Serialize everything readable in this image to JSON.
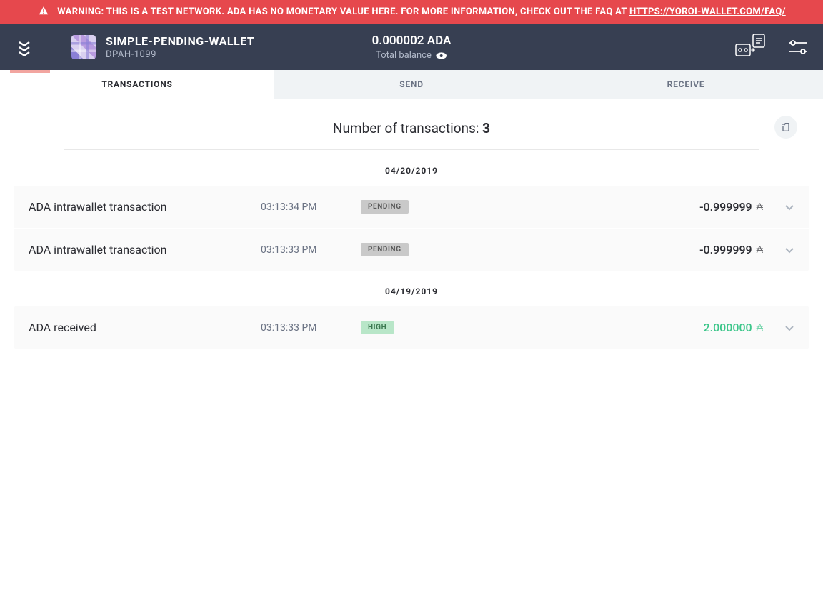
{
  "warning": {
    "prefix": "WARNING: THIS IS A TEST NETWORK. ADA HAS NO MONETARY VALUE HERE. FOR MORE INFORMATION, CHECK OUT THE FAQ AT ",
    "link": "HTTPS://YOROI-WALLET.COM/FAQ/"
  },
  "wallet": {
    "name": "SIMPLE-PENDING-WALLET",
    "subtitle": "DPAH-1099"
  },
  "balance": {
    "amount": "0.000002 ADA",
    "label": "Total balance"
  },
  "tabs": {
    "transactions": "TRANSACTIONS",
    "send": "SEND",
    "receive": "RECEIVE"
  },
  "txcount": {
    "label": "Number of transactions: ",
    "value": "3"
  },
  "groups": [
    {
      "date": "04/20/2019",
      "rows": [
        {
          "title": "ADA intrawallet transaction",
          "time": "03:13:34 PM",
          "status": "PENDING",
          "status_class": "status-pending",
          "amount": "-0.999999",
          "amount_class": "amount-neg"
        },
        {
          "title": "ADA intrawallet transaction",
          "time": "03:13:33 PM",
          "status": "PENDING",
          "status_class": "status-pending",
          "amount": "-0.999999",
          "amount_class": "amount-neg"
        }
      ]
    },
    {
      "date": "04/19/2019",
      "rows": [
        {
          "title": "ADA received",
          "time": "03:13:33 PM",
          "status": "HIGH",
          "status_class": "status-high",
          "amount": "2.000000",
          "amount_class": "amount-pos"
        }
      ]
    }
  ],
  "colors": {
    "warning_bg": "#e6484d",
    "header_bg": "#373f52",
    "indicator": "#f2a5a0",
    "positive": "#3cc68a",
    "pending_bg": "#c9c9c9",
    "high_bg": "#b8e6c8"
  }
}
